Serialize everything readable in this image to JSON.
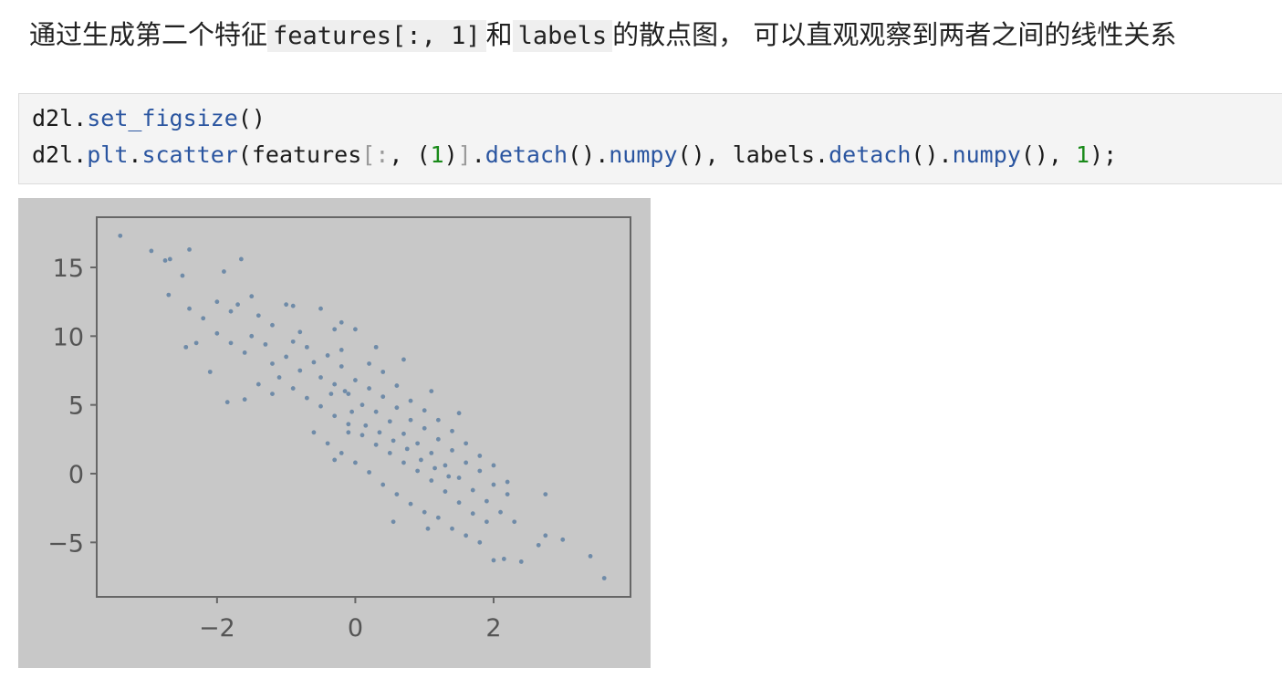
{
  "paragraph": {
    "segments": [
      {
        "text": "通过生成第二个特征"
      },
      {
        "text": "features[:, 1]",
        "code": true
      },
      {
        "text": "和"
      },
      {
        "text": "labels",
        "code": true
      },
      {
        "text": "的散点图， 可以直观观察到两者之间的线性关系"
      }
    ]
  },
  "code": {
    "lines": [
      [
        {
          "text": "d2l.",
          "color": "#1a1a1a"
        },
        {
          "text": "set_figsize",
          "color": "#2a55a0"
        },
        {
          "text": "()",
          "color": "#1a1a1a"
        }
      ],
      [
        {
          "text": "d2l.",
          "color": "#1a1a1a"
        },
        {
          "text": "plt",
          "color": "#2a55a0"
        },
        {
          "text": ".",
          "color": "#1a1a1a"
        },
        {
          "text": "scatter",
          "color": "#2a55a0"
        },
        {
          "text": "(features",
          "color": "#1a1a1a"
        },
        {
          "text": "[:",
          "color": "#9a9a9a"
        },
        {
          "text": ", (",
          "color": "#1a1a1a"
        },
        {
          "text": "1",
          "color": "#1a8a1a"
        },
        {
          "text": ")",
          "color": "#1a1a1a"
        },
        {
          "text": "]",
          "color": "#9a9a9a"
        },
        {
          "text": ".",
          "color": "#1a1a1a"
        },
        {
          "text": "detach",
          "color": "#2a55a0"
        },
        {
          "text": "().",
          "color": "#1a1a1a"
        },
        {
          "text": "numpy",
          "color": "#2a55a0"
        },
        {
          "text": "(), labels.",
          "color": "#1a1a1a"
        },
        {
          "text": "detach",
          "color": "#2a55a0"
        },
        {
          "text": "().",
          "color": "#1a1a1a"
        },
        {
          "text": "numpy",
          "color": "#2a55a0"
        },
        {
          "text": "(), ",
          "color": "#1a1a1a"
        },
        {
          "text": "1",
          "color": "#1a8a1a"
        },
        {
          "text": ");",
          "color": "#1a1a1a"
        }
      ]
    ]
  },
  "chart_data": {
    "type": "scatter",
    "color": "#6f8ba8",
    "xlim": [
      -3.74,
      3.98
    ],
    "ylim": [
      -8.96,
      18.65
    ],
    "xticks": [
      {
        "value": -2,
        "label": "−2"
      },
      0,
      2
    ],
    "yticks": [
      {
        "value": -5,
        "label": "−5"
      },
      0,
      5,
      10,
      15
    ],
    "x": [
      -3.4,
      -2.95,
      -2.75,
      -2.68,
      -2.4,
      -1.65,
      -1.9,
      -2.5,
      -2.7,
      3.6,
      3.4,
      3.0,
      2.75,
      2.75,
      2.65,
      2.4,
      2.0,
      2.15,
      -1.85,
      -1.6,
      -2.3,
      -2.45,
      -2.1,
      -0.3,
      -0.1,
      1.05,
      0.55,
      -2.0,
      -1.8,
      -1.7,
      -1.5,
      -1.4,
      -1.2,
      -1.0,
      -0.9,
      -0.5,
      -0.3,
      0.0,
      -2.0,
      -1.8,
      -1.6,
      -1.5,
      -1.3,
      -1.2,
      -1.0,
      -0.9,
      -0.8,
      -0.7,
      -0.6,
      -0.5,
      -0.4,
      -0.3,
      -0.2,
      -0.1,
      0.0,
      0.1,
      0.2,
      0.3,
      0.4,
      0.5,
      0.6,
      0.7,
      0.8,
      0.9,
      1.0,
      1.1,
      1.2,
      1.3,
      1.4,
      1.5,
      1.6,
      1.7,
      1.8,
      1.9,
      2.0,
      2.1,
      2.2,
      2.3,
      -1.1,
      -0.9,
      -0.7,
      -0.5,
      -0.3,
      -0.1,
      0.1,
      0.3,
      0.5,
      0.7,
      0.9,
      1.1,
      1.3,
      1.5,
      1.7,
      1.9,
      -1.4,
      -1.2,
      -0.2,
      0.2,
      0.4,
      0.6,
      0.8,
      1.0,
      1.2,
      1.4,
      1.6,
      1.8,
      2.0,
      -0.6,
      -0.4,
      -0.2,
      0.0,
      0.2,
      0.4,
      0.6,
      0.8,
      1.0,
      1.2,
      1.4,
      1.6,
      1.8,
      -0.8,
      -0.2,
      0.3,
      0.7,
      1.1,
      1.5,
      2.2,
      -2.2,
      -2.4,
      -0.05,
      0.15,
      0.35,
      -0.35,
      -0.15,
      0.55,
      0.75,
      0.95,
      1.15,
      1.35
    ],
    "y": [
      17.3,
      16.2,
      15.5,
      15.6,
      16.3,
      15.6,
      14.7,
      14.4,
      13.0,
      -7.6,
      -6.0,
      -4.8,
      -1.5,
      -4.5,
      -5.2,
      -6.4,
      -6.3,
      -6.2,
      5.2,
      5.4,
      9.5,
      9.2,
      7.4,
      1.0,
      3.0,
      -4.0,
      -3.5,
      12.5,
      11.8,
      12.3,
      12.9,
      11.5,
      10.8,
      12.3,
      12.2,
      12.0,
      10.5,
      10.5,
      10.2,
      9.5,
      8.8,
      10.0,
      9.4,
      8.0,
      8.5,
      9.6,
      7.5,
      9.2,
      8.1,
      7.0,
      8.6,
      6.5,
      7.8,
      5.8,
      6.8,
      5.0,
      6.2,
      4.5,
      5.6,
      3.8,
      4.8,
      2.9,
      3.9,
      2.2,
      3.3,
      1.5,
      2.5,
      0.6,
      1.7,
      -0.3,
      0.8,
      -1.2,
      0.2,
      -2.0,
      -0.8,
      -2.8,
      -1.5,
      -3.5,
      7.0,
      6.2,
      5.5,
      4.9,
      4.2,
      3.6,
      2.8,
      2.1,
      1.5,
      0.8,
      0.2,
      -0.5,
      -1.3,
      -2.1,
      -2.9,
      -3.5,
      6.5,
      5.8,
      9.0,
      8.0,
      7.4,
      6.4,
      5.3,
      4.6,
      3.9,
      3.1,
      2.2,
      1.3,
      0.6,
      3.0,
      2.2,
      1.5,
      0.8,
      0.1,
      -0.8,
      -1.5,
      -2.2,
      -2.8,
      -3.2,
      -4.0,
      -4.5,
      -5.0,
      10.3,
      11.0,
      9.2,
      8.3,
      6.0,
      4.4,
      -0.6,
      11.3,
      12.0,
      4.5,
      3.5,
      3.0,
      5.8,
      6.0,
      2.4,
      1.8,
      1.0,
      0.4,
      -0.2
    ]
  }
}
